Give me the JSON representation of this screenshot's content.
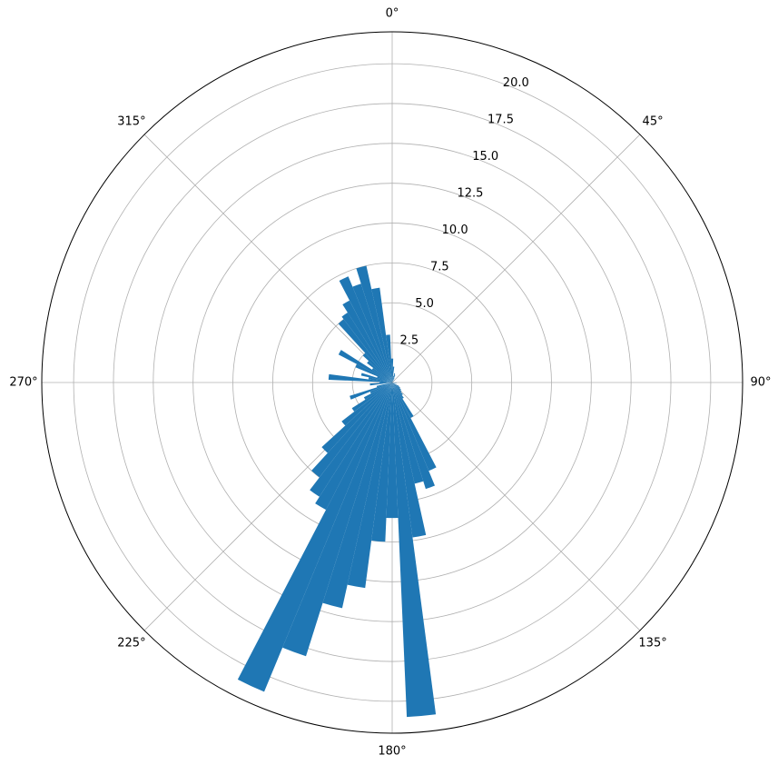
{
  "chart_data": {
    "type": "bar",
    "projection": "polar",
    "theta_zero_location": "N",
    "theta_direction": "clockwise",
    "theta_ticks": [
      "0°",
      "45°",
      "90°",
      "135°",
      "180°",
      "225°",
      "270°",
      "315°"
    ],
    "r_ticks": [
      "2.5",
      "5.0",
      "7.5",
      "10.0",
      "12.5",
      "15.0",
      "17.5",
      "20.0"
    ],
    "rlim": [
      0,
      22
    ],
    "grid": true,
    "bar_color": "#1f77b4",
    "bin_width_deg": 5,
    "series": [
      {
        "theta_deg": [
          5,
          10,
          15,
          20,
          25,
          45,
          95,
          100,
          120,
          125,
          130,
          135,
          140,
          145,
          150,
          155,
          160,
          165,
          170,
          175,
          180,
          185,
          190,
          195,
          200,
          205,
          210,
          215,
          220,
          225,
          230,
          235,
          240,
          245,
          250,
          255,
          265,
          270,
          275,
          280,
          285,
          290,
          295,
          300,
          305,
          310,
          315,
          320,
          325,
          330,
          335,
          340,
          345,
          350,
          355,
          360
        ],
        "values": [
          1.0,
          0.4,
          0.6,
          0.5,
          0.3,
          0.2,
          0.2,
          0.3,
          0.5,
          0.6,
          0.7,
          0.8,
          1.0,
          1.2,
          2.5,
          6.0,
          7.0,
          6.5,
          9.8,
          21.0,
          8.5,
          10.0,
          13.0,
          14.5,
          18.0,
          21.0,
          9.0,
          8.5,
          7.5,
          6.0,
          4.0,
          3.0,
          2.0,
          1.5,
          2.8,
          1.0,
          1.4,
          0.8,
          4.0,
          1.5,
          2.0,
          1.0,
          2.5,
          3.8,
          1.5,
          2.0,
          2.5,
          5.0,
          5.2,
          5.8,
          7.2,
          6.5,
          7.5,
          6.0,
          3.0,
          1.5
        ]
      }
    ]
  }
}
